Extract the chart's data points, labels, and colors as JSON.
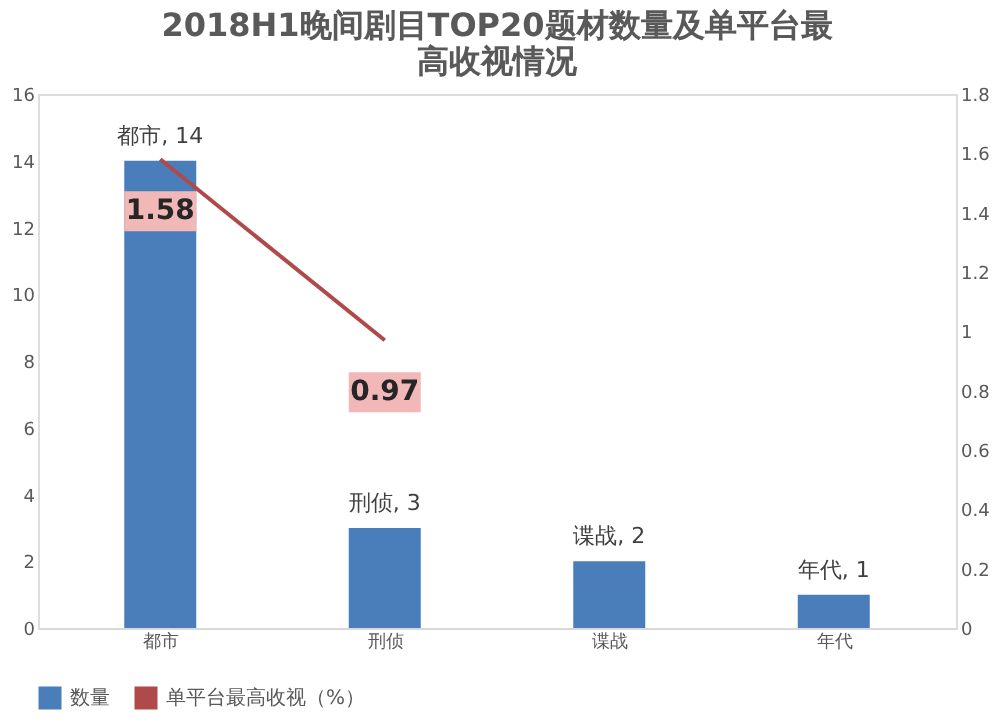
{
  "chart_data": {
    "type": "bar",
    "title": "2018H1晚间剧目TOP20题材数量及单平台最高收视情况",
    "categories": [
      "都市",
      "刑侦",
      "谍战",
      "年代"
    ],
    "series": [
      {
        "name": "数量",
        "color": "#4a7ebb",
        "values": [
          14,
          3,
          2,
          1
        ],
        "value_labels": [
          "都市, 14",
          "刑侦, 3",
          "谍战, 2",
          "年代, 1"
        ]
      },
      {
        "name": "单平台最高收视（%）",
        "type": "line",
        "axis": "y2",
        "color": "#b04a4a",
        "values": [
          1.58,
          0.97,
          null,
          null
        ],
        "value_labels": [
          "1.58",
          "0.97",
          null,
          null
        ]
      }
    ],
    "ylim": [
      0,
      16
    ],
    "yticks": [
      0,
      2,
      4,
      6,
      8,
      10,
      12,
      14,
      16
    ],
    "y2lim": [
      0,
      1.8
    ],
    "y2ticks": [
      0,
      0.2,
      0.4,
      0.6,
      0.8,
      1.0,
      1.2,
      1.4,
      1.6,
      1.8
    ],
    "grid": false,
    "legend": "bottom",
    "marker": "none",
    "line_style": "solid"
  }
}
